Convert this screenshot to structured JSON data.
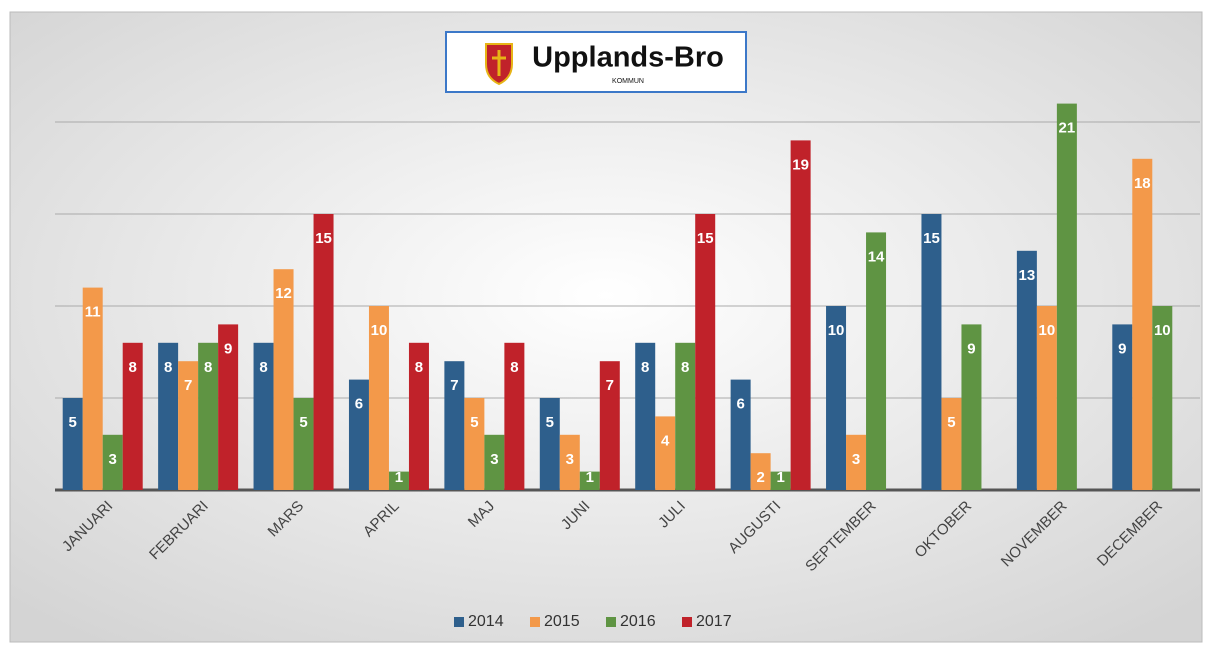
{
  "chart_data": {
    "type": "bar",
    "logo": {
      "title": "Upplands-Bro",
      "subtitle": "KOMMUN"
    },
    "categories": [
      "JANUARI",
      "FEBRUARI",
      "MARS",
      "APRIL",
      "MAJ",
      "JUNI",
      "JULI",
      "AUGUSTI",
      "SEPTEMBER",
      "OKTOBER",
      "NOVEMBER",
      "DECEMBER"
    ],
    "series": [
      {
        "name": "2014",
        "color": "#2e5f8c",
        "values": [
          5,
          8,
          8,
          6,
          7,
          5,
          8,
          6,
          10,
          15,
          13,
          9
        ]
      },
      {
        "name": "2015",
        "color": "#f3994a",
        "values": [
          11,
          7,
          12,
          10,
          5,
          3,
          4,
          2,
          3,
          5,
          10,
          18
        ]
      },
      {
        "name": "2016",
        "color": "#5f9443",
        "values": [
          3,
          8,
          5,
          1,
          3,
          1,
          8,
          1,
          14,
          9,
          21,
          10
        ]
      },
      {
        "name": "2017",
        "color": "#c0222a",
        "values": [
          8,
          9,
          15,
          8,
          8,
          7,
          15,
          19,
          null,
          null,
          null,
          null
        ]
      }
    ],
    "ylim": [
      0,
      25
    ],
    "yticks": [
      0,
      5,
      10,
      15,
      20
    ],
    "grid": true,
    "legend": "bottom"
  }
}
